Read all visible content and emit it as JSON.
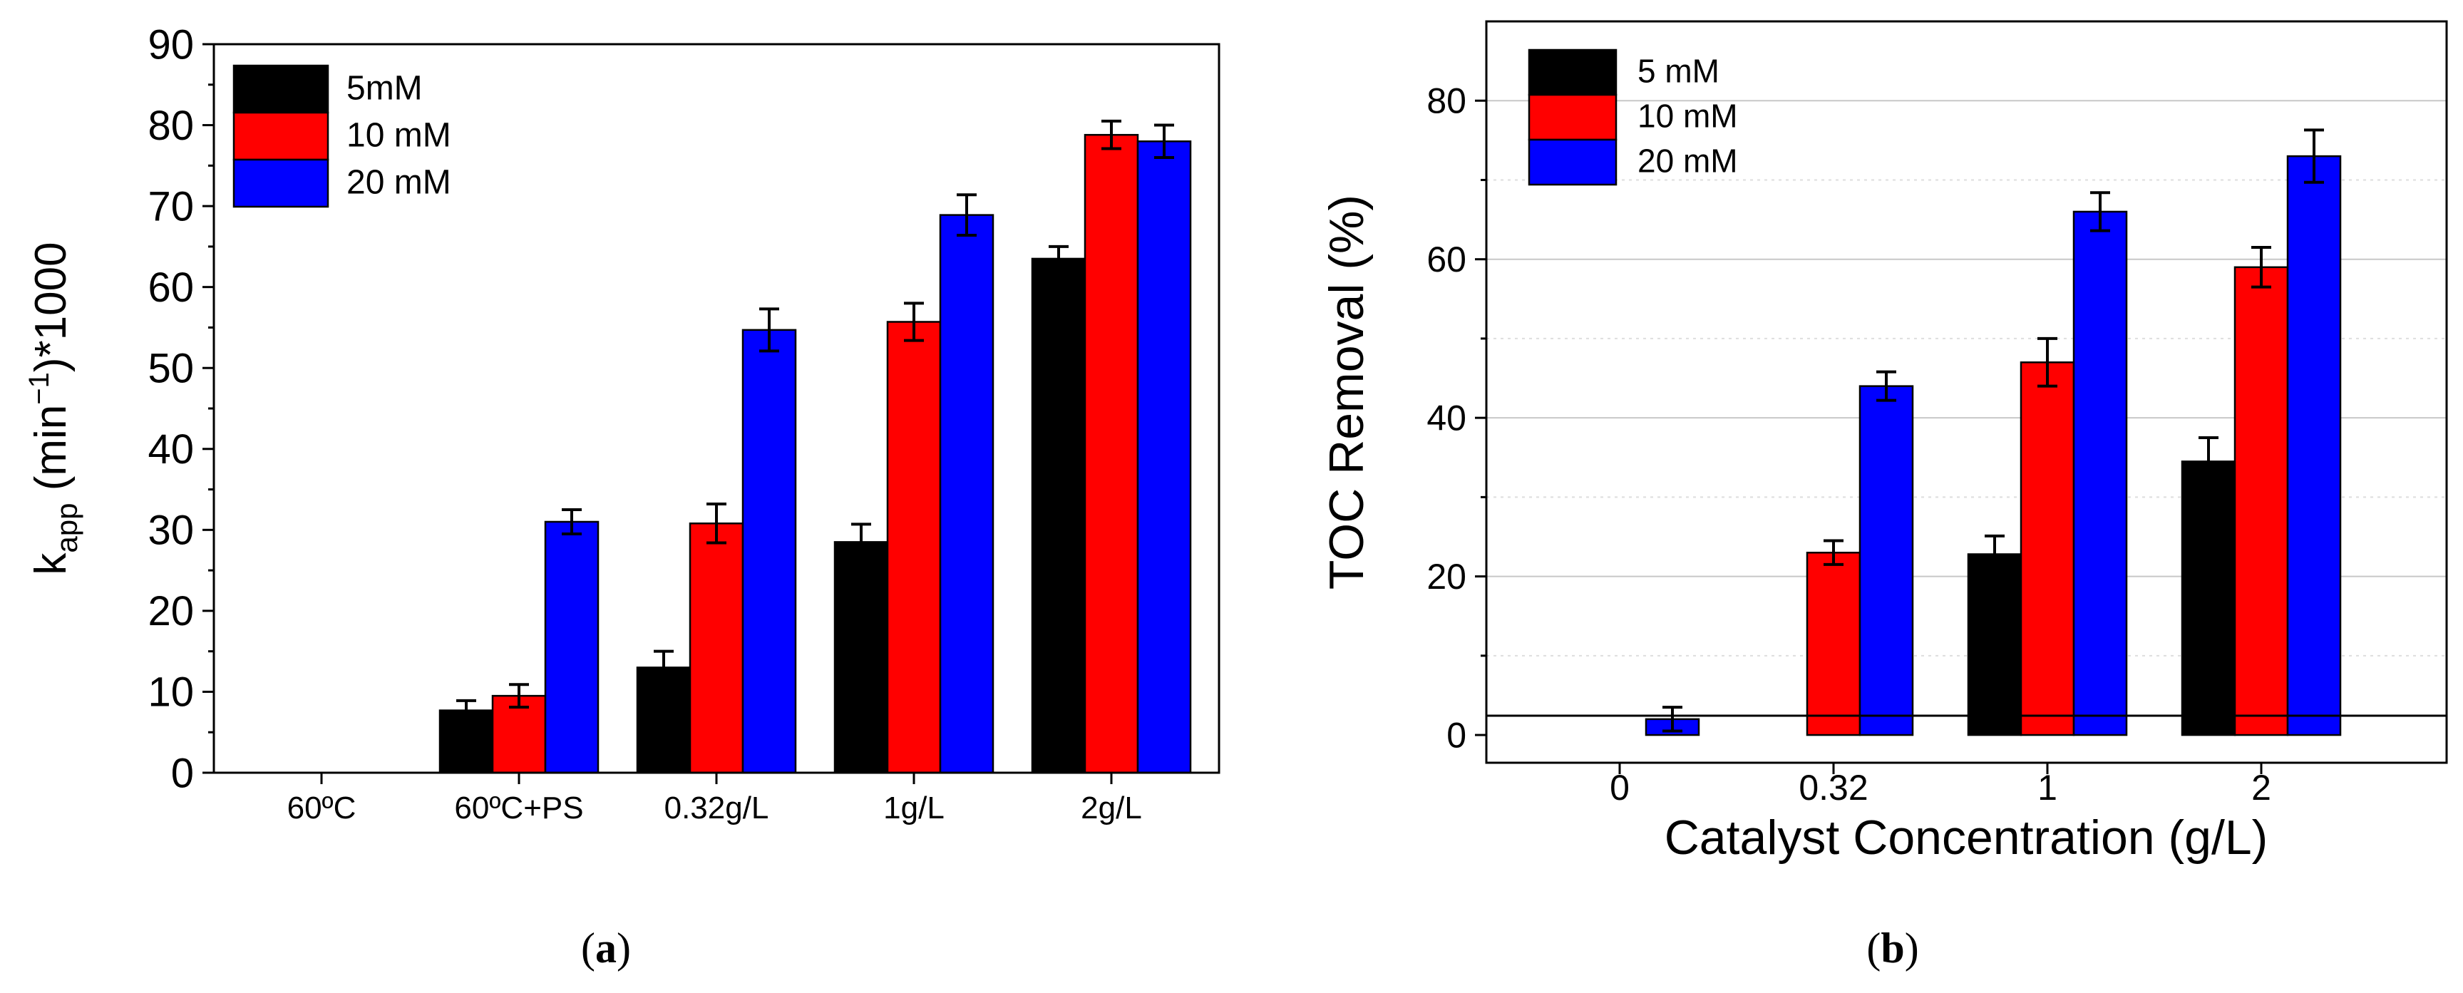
{
  "chart_data": [
    {
      "type": "bar",
      "panel_label": "a",
      "title": "",
      "xlabel": "",
      "ylabel": {
        "main": "k",
        "subscript": "app",
        "unit_pre": " (min",
        "superscript": "−1",
        "unit_post": ")*1000"
      },
      "ylim": [
        0,
        90
      ],
      "yticks": [
        "0",
        "10",
        "20",
        "30",
        "40",
        "50",
        "60",
        "70",
        "80",
        "90"
      ],
      "grid": false,
      "legend_position": "top-left",
      "categories": [
        "60ºC",
        "60ºC+PS",
        "0.32g/L",
        "1g/L",
        "2g/L"
      ],
      "series": [
        {
          "name": "5mM",
          "color": "#000000",
          "values": [
            0,
            7.7,
            13,
            28.5,
            63.5
          ],
          "errors": [
            0,
            1.2,
            2.0,
            2.2,
            1.5
          ]
        },
        {
          "name": "10 mM",
          "color": "#ff0000",
          "values": [
            0,
            9.5,
            30.8,
            55.7,
            78.8
          ],
          "errors": [
            0,
            1.4,
            2.4,
            2.3,
            1.7
          ]
        },
        {
          "name": "20 mM",
          "color": "#0000ff",
          "values": [
            0,
            31,
            54.7,
            68.9,
            78
          ],
          "errors": [
            0,
            1.5,
            2.6,
            2.5,
            2.0
          ]
        }
      ]
    },
    {
      "type": "bar",
      "panel_label": "b",
      "title": "",
      "xlabel": "Catalyst Concentration (g/L)",
      "ylabel": "TOC Removal (%)",
      "ylim": [
        -3.5,
        90
      ],
      "yticks": [
        "0",
        "20",
        "40",
        "60",
        "80"
      ],
      "grid": true,
      "legend_position": "top-left",
      "categories": [
        "0",
        "0.32",
        "1",
        "2"
      ],
      "series": [
        {
          "name": "5 mM",
          "color": "#000000",
          "values": [
            0,
            0,
            22.8,
            34.5
          ],
          "errors": [
            0,
            0,
            2.3,
            3.0
          ]
        },
        {
          "name": "10 mM",
          "color": "#ff0000",
          "values": [
            0,
            23,
            47,
            59
          ],
          "errors": [
            0,
            1.5,
            3.0,
            2.5
          ]
        },
        {
          "name": "20 mM",
          "color": "#0000ff",
          "values": [
            2,
            44,
            66,
            73
          ],
          "errors": [
            1.5,
            1.8,
            2.4,
            3.3
          ]
        }
      ]
    }
  ]
}
